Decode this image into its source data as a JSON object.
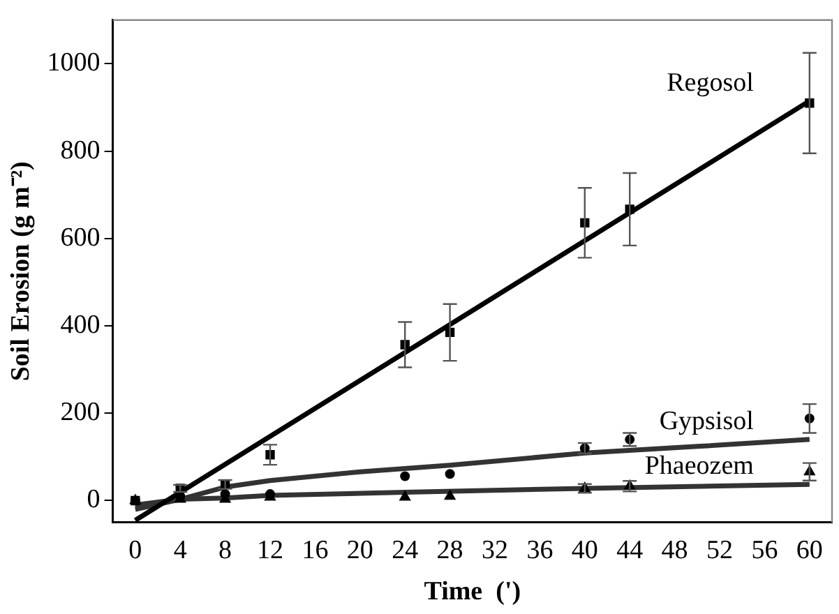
{
  "chart_data": {
    "type": "scatter",
    "xlabel": "Time  (')",
    "ylabel": "Soil Erosion (g m⁻²)",
    "xlim": [
      -2,
      62
    ],
    "ylim": [
      -50,
      1100
    ],
    "xticks": [
      0,
      4,
      8,
      12,
      16,
      20,
      24,
      28,
      32,
      36,
      40,
      44,
      48,
      52,
      56,
      60
    ],
    "yticks": [
      0,
      200,
      400,
      600,
      800,
      1000
    ],
    "grid": false,
    "legend": false,
    "series": [
      {
        "marker": "square",
        "color": "#000000",
        "x": [
          0,
          4,
          8,
          12,
          24,
          28,
          40,
          44,
          60
        ],
        "values": [
          0,
          28,
          37,
          105,
          357,
          385,
          636,
          667,
          910
        ],
        "errors": [
          null,
          8,
          10,
          23,
          52,
          65,
          80,
          83,
          115
        ]
      },
      {
        "marker": "circle",
        "color": "#000000",
        "x": [
          0,
          4,
          8,
          12,
          24,
          28,
          40,
          44,
          60
        ],
        "values": [
          0,
          10,
          15,
          15,
          56,
          61,
          120,
          140,
          188
        ],
        "errors": [
          null,
          null,
          null,
          null,
          null,
          null,
          12,
          15,
          33
        ]
      },
      {
        "marker": "triangle",
        "color": "#000000",
        "x": [
          0,
          4,
          8,
          12,
          24,
          28,
          40,
          44,
          60
        ],
        "values": [
          0,
          3,
          3,
          8,
          8,
          10,
          28,
          33,
          66
        ],
        "errors": [
          null,
          null,
          null,
          null,
          null,
          null,
          10,
          12,
          20
        ]
      },
      {
        "type": "line",
        "name": "Regosol",
        "marker": "none",
        "line_style": "solid",
        "color": "#000000",
        "x": [
          0,
          60
        ],
        "values": [
          -45,
          915
        ]
      },
      {
        "type": "line",
        "name": "Gypsisol",
        "marker": "none",
        "line_style": "solid",
        "color": "#333333",
        "x": [
          0,
          4,
          8,
          12,
          20,
          28,
          40,
          50,
          60
        ],
        "values": [
          -20,
          3,
          31,
          46,
          66,
          81,
          109,
          124,
          140
        ]
      },
      {
        "type": "line",
        "name": "Phaeozem",
        "marker": "none",
        "line_style": "solid",
        "color": "#333333",
        "x": [
          0,
          4,
          8,
          12,
          24,
          40,
          60
        ],
        "values": [
          -10,
          3,
          6,
          12,
          19,
          28,
          37
        ]
      }
    ]
  }
}
